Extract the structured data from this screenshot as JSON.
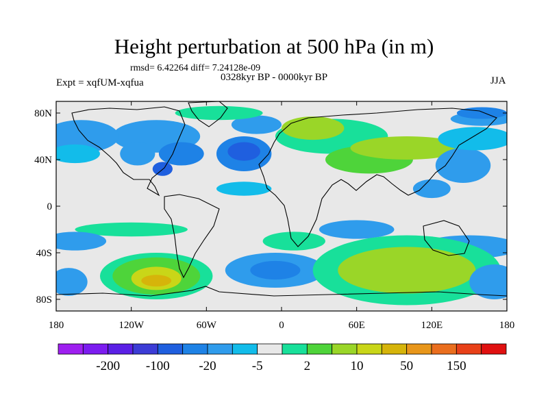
{
  "title": "Height perturbation at 500 hPa (in m)",
  "stats": "rmsd= 6.42264 diff= 7.24128e-09",
  "experiment": "Expt = xqfUM-xqfua",
  "period": "0328kyr BP - 0000kyr BP",
  "season": "JJA",
  "chart_data": {
    "type": "heatmap",
    "projection": "cylindrical-equidistant",
    "xlim": [
      -180,
      180
    ],
    "ylim": [
      -90,
      90
    ],
    "x_ticks": [
      {
        "value": -180,
        "label": "180"
      },
      {
        "value": -120,
        "label": "120W"
      },
      {
        "value": -60,
        "label": "60W"
      },
      {
        "value": 0,
        "label": "0"
      },
      {
        "value": 60,
        "label": "60E"
      },
      {
        "value": 120,
        "label": "120E"
      },
      {
        "value": 180,
        "label": "180"
      }
    ],
    "y_ticks": [
      {
        "value": 80,
        "label": "80N"
      },
      {
        "value": 40,
        "label": "40N"
      },
      {
        "value": 0,
        "label": "0"
      },
      {
        "value": -40,
        "label": "40S"
      },
      {
        "value": -80,
        "label": "80S"
      }
    ],
    "colorbar": {
      "colors": [
        "#9e1ff0",
        "#7c1cf0",
        "#5b20e6",
        "#3c3cd6",
        "#1f5fdf",
        "#1e82e6",
        "#2f9cec",
        "#12bcea",
        "#e8e8e8",
        "#18e09a",
        "#4ed43a",
        "#9ad628",
        "#c9d618",
        "#d6b40a",
        "#e8961a",
        "#ea6e1e",
        "#e84018",
        "#e01010"
      ],
      "labels": [
        {
          "after_index": 1,
          "text": "-200"
        },
        {
          "after_index": 3,
          "text": "-100"
        },
        {
          "after_index": 5,
          "text": "-20"
        },
        {
          "after_index": 7,
          "text": "-5"
        },
        {
          "after_index": 9,
          "text": "2"
        },
        {
          "after_index": 11,
          "text": "10"
        },
        {
          "after_index": 13,
          "text": "50"
        },
        {
          "after_index": 15,
          "text": "150"
        }
      ]
    },
    "anomaly_field": [
      {
        "lon": -100,
        "lat": 60,
        "rx": 35,
        "ry": 14,
        "level": 6
      },
      {
        "lon": -160,
        "lat": 60,
        "rx": 30,
        "ry": 14,
        "level": 6
      },
      {
        "lon": -165,
        "lat": 45,
        "rx": 20,
        "ry": 8,
        "level": 7
      },
      {
        "lon": -115,
        "lat": 45,
        "rx": 14,
        "ry": 10,
        "level": 6
      },
      {
        "lon": -80,
        "lat": 45,
        "rx": 18,
        "ry": 10,
        "level": 5
      },
      {
        "lon": -95,
        "lat": 32,
        "rx": 8,
        "ry": 6,
        "level": 4
      },
      {
        "lon": -30,
        "lat": 45,
        "rx": 22,
        "ry": 15,
        "level": 5
      },
      {
        "lon": -30,
        "lat": 47,
        "rx": 13,
        "ry": 8,
        "level": 4
      },
      {
        "lon": -30,
        "lat": 15,
        "rx": 22,
        "ry": 6,
        "level": 7
      },
      {
        "lon": -20,
        "lat": 70,
        "rx": 20,
        "ry": 8,
        "level": 6
      },
      {
        "lon": 40,
        "lat": 60,
        "rx": 45,
        "ry": 15,
        "level": 9
      },
      {
        "lon": 25,
        "lat": 67,
        "rx": 25,
        "ry": 10,
        "level": 11
      },
      {
        "lon": 70,
        "lat": 40,
        "rx": 35,
        "ry": 12,
        "level": 10
      },
      {
        "lon": 100,
        "lat": 50,
        "rx": 45,
        "ry": 10,
        "level": 11
      },
      {
        "lon": 145,
        "lat": 35,
        "rx": 22,
        "ry": 15,
        "level": 6
      },
      {
        "lon": 155,
        "lat": 58,
        "rx": 30,
        "ry": 10,
        "level": 7
      },
      {
        "lon": 120,
        "lat": 15,
        "rx": 15,
        "ry": 8,
        "level": 6
      },
      {
        "lon": 160,
        "lat": 75,
        "rx": 25,
        "ry": 6,
        "level": 6
      },
      {
        "lon": 160,
        "lat": 80,
        "rx": 20,
        "ry": 5,
        "level": 5
      },
      {
        "lon": -50,
        "lat": 80,
        "rx": 35,
        "ry": 6,
        "level": 9
      },
      {
        "lon": -120,
        "lat": -20,
        "rx": 45,
        "ry": 6,
        "level": 9
      },
      {
        "lon": -165,
        "lat": -30,
        "rx": 25,
        "ry": 8,
        "level": 6
      },
      {
        "lon": 10,
        "lat": -30,
        "rx": 25,
        "ry": 8,
        "level": 9
      },
      {
        "lon": 60,
        "lat": -20,
        "rx": 30,
        "ry": 8,
        "level": 6
      },
      {
        "lon": 150,
        "lat": -35,
        "rx": 40,
        "ry": 10,
        "level": 6
      },
      {
        "lon": -100,
        "lat": -60,
        "rx": 45,
        "ry": 20,
        "level": 9
      },
      {
        "lon": -100,
        "lat": -60,
        "rx": 35,
        "ry": 16,
        "level": 10
      },
      {
        "lon": -100,
        "lat": -62,
        "rx": 20,
        "ry": 10,
        "level": 12
      },
      {
        "lon": -100,
        "lat": -64,
        "rx": 12,
        "ry": 5,
        "level": 13
      },
      {
        "lon": -5,
        "lat": -55,
        "rx": 40,
        "ry": 15,
        "level": 6
      },
      {
        "lon": -5,
        "lat": -55,
        "rx": 20,
        "ry": 8,
        "level": 5
      },
      {
        "lon": 100,
        "lat": -55,
        "rx": 75,
        "ry": 30,
        "level": 9
      },
      {
        "lon": 100,
        "lat": -55,
        "rx": 55,
        "ry": 20,
        "level": 11
      },
      {
        "lon": 170,
        "lat": -65,
        "rx": 20,
        "ry": 15,
        "level": 6
      },
      {
        "lon": -170,
        "lat": -65,
        "rx": 15,
        "ry": 12,
        "level": 6
      }
    ]
  }
}
